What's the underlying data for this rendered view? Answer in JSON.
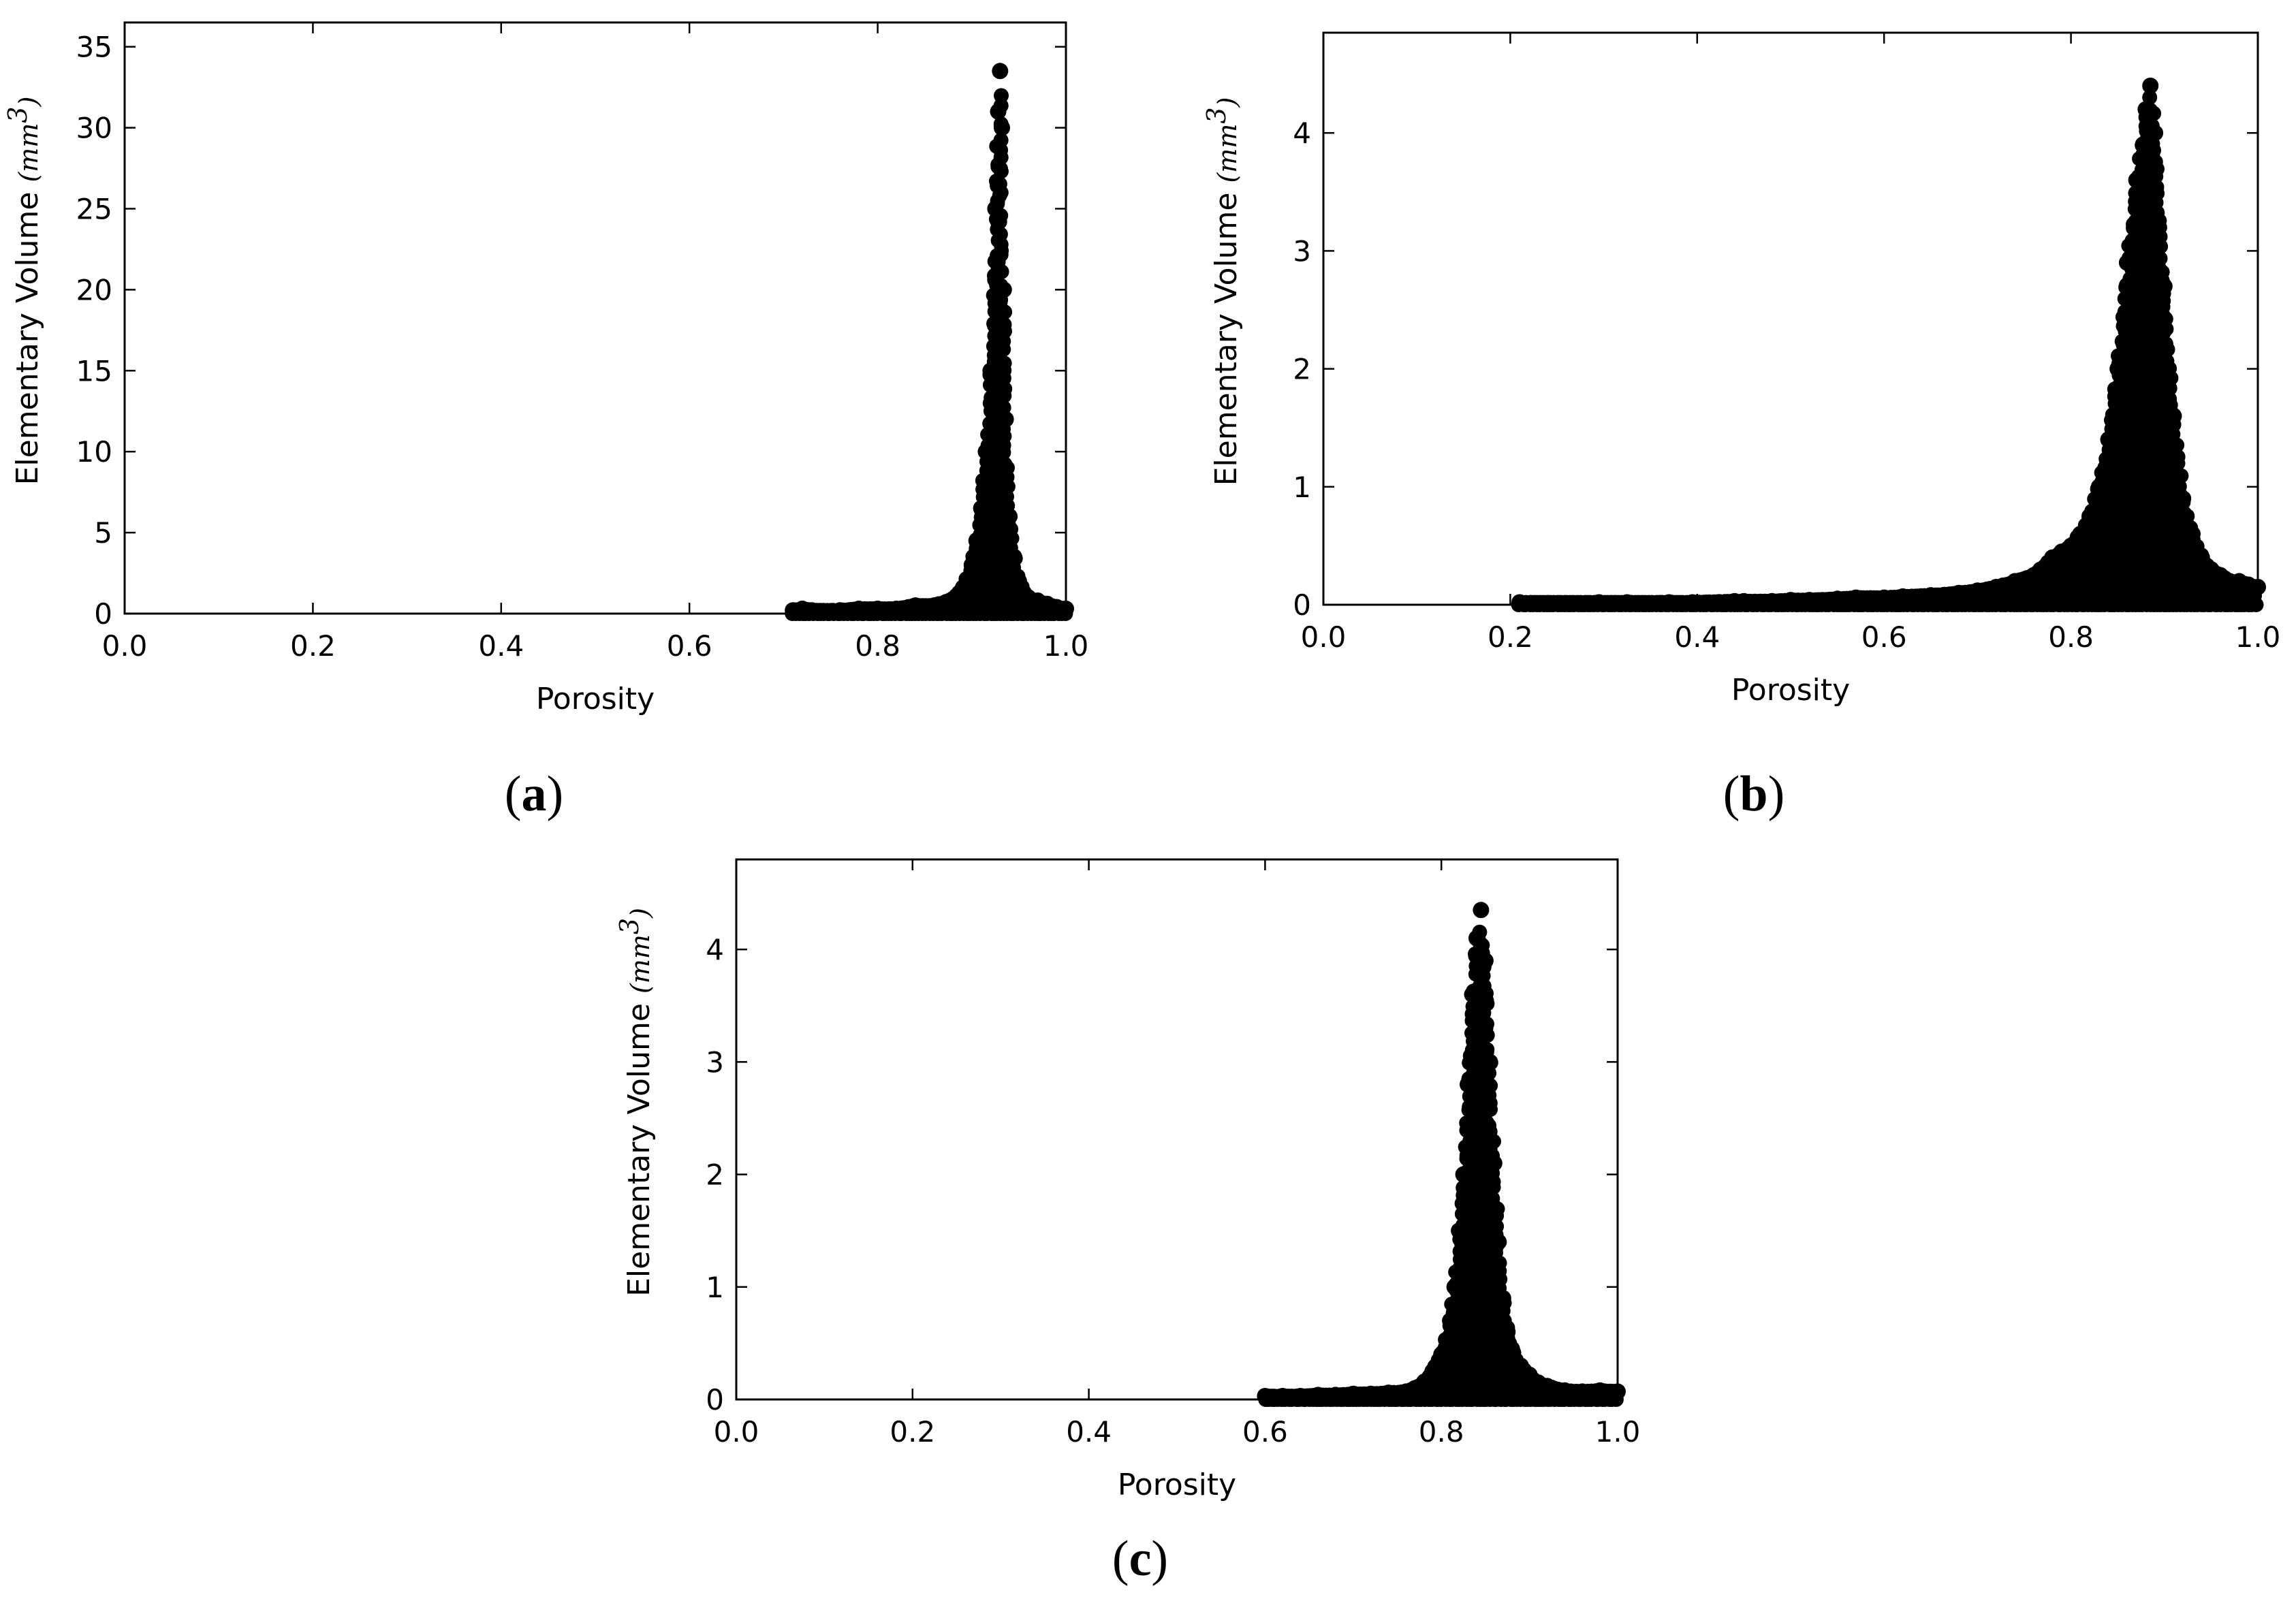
{
  "chart_data": [
    {
      "type": "scatter",
      "panel_label": "a",
      "xlabel": "Porosity",
      "ylabel": "Elementary Volume",
      "ylabel_unit": "(mm",
      "ylabel_unit_exp": "3",
      "ylabel_unit_close": ")",
      "xlim": [
        0.0,
        1.0
      ],
      "ylim": [
        0,
        36.5
      ],
      "xticks": [
        "0.0",
        "0.2",
        "0.4",
        "0.6",
        "0.8",
        "1.0"
      ],
      "yticks": [
        "0",
        "5",
        "10",
        "15",
        "20",
        "25",
        "30",
        "35"
      ],
      "x": [
        0.71,
        0.72,
        0.73,
        0.76,
        0.78,
        0.8,
        0.82,
        0.84,
        0.86,
        0.88,
        0.89,
        0.9,
        0.905,
        0.91,
        0.915,
        0.92,
        0.925,
        0.928,
        0.93,
        0.932,
        0.934,
        0.936,
        0.94,
        0.945,
        0.95,
        0.955,
        0.96,
        0.97,
        0.98,
        0.99,
        1.0
      ],
      "y": [
        0.2,
        0.3,
        0.2,
        0.2,
        0.3,
        0.3,
        0.3,
        0.5,
        0.5,
        0.9,
        1.5,
        3.0,
        4.5,
        6.5,
        10.0,
        15.0,
        25.0,
        31.0,
        33.5,
        30.0,
        20.0,
        12.0,
        6.0,
        3.5,
        2.0,
        1.3,
        1.0,
        0.8,
        0.6,
        0.4,
        0.3
      ]
    },
    {
      "type": "scatter",
      "panel_label": "b",
      "xlabel": "Porosity",
      "ylabel": "Elementary Volume",
      "ylabel_unit": "(mm",
      "ylabel_unit_exp": "3",
      "ylabel_unit_close": ")",
      "xlim": [
        0.0,
        1.0
      ],
      "ylim": [
        0,
        4.85
      ],
      "xticks": [
        "0.0",
        "0.2",
        "0.4",
        "0.6",
        "0.8",
        "1.0"
      ],
      "yticks": [
        "0",
        "1",
        "2",
        "3",
        "4"
      ],
      "x": [
        0.21,
        0.295,
        0.325,
        0.37,
        0.395,
        0.44,
        0.45,
        0.48,
        0.5,
        0.52,
        0.55,
        0.57,
        0.6,
        0.62,
        0.65,
        0.68,
        0.7,
        0.72,
        0.74,
        0.76,
        0.78,
        0.79,
        0.8,
        0.81,
        0.82,
        0.83,
        0.84,
        0.85,
        0.86,
        0.87,
        0.88,
        0.885,
        0.89,
        0.9,
        0.91,
        0.92,
        0.93,
        0.94,
        0.95,
        0.96,
        0.97,
        0.98,
        0.99,
        1.0
      ],
      "y": [
        0.02,
        0.02,
        0.02,
        0.02,
        0.02,
        0.03,
        0.03,
        0.03,
        0.04,
        0.04,
        0.05,
        0.06,
        0.06,
        0.07,
        0.08,
        0.1,
        0.12,
        0.15,
        0.2,
        0.25,
        0.4,
        0.45,
        0.5,
        0.6,
        0.75,
        1.0,
        1.4,
        2.0,
        2.9,
        3.6,
        4.2,
        4.4,
        4.0,
        2.7,
        1.6,
        0.9,
        0.6,
        0.4,
        0.3,
        0.25,
        0.2,
        0.2,
        0.17,
        0.15
      ]
    },
    {
      "type": "scatter",
      "panel_label": "c",
      "xlabel": "Porosity",
      "ylabel": "Elementary Volume",
      "ylabel_unit": "(mm",
      "ylabel_unit_exp": "3",
      "ylabel_unit_close": ")",
      "xlim": [
        0.0,
        1.0
      ],
      "ylim": [
        0,
        4.8
      ],
      "xticks": [
        "0.0",
        "0.2",
        "0.4",
        "0.6",
        "0.8",
        "1.0"
      ],
      "yticks": [
        "0",
        "1",
        "2",
        "3",
        "4"
      ],
      "x": [
        0.6,
        0.62,
        0.64,
        0.66,
        0.68,
        0.7,
        0.72,
        0.74,
        0.76,
        0.77,
        0.78,
        0.79,
        0.8,
        0.81,
        0.815,
        0.82,
        0.825,
        0.83,
        0.835,
        0.84,
        0.845,
        0.85,
        0.855,
        0.86,
        0.865,
        0.87,
        0.875,
        0.88,
        0.89,
        0.9,
        0.91,
        0.92,
        0.94,
        0.96,
        0.98,
        1.0
      ],
      "y": [
        0.03,
        0.03,
        0.03,
        0.04,
        0.04,
        0.05,
        0.05,
        0.06,
        0.07,
        0.1,
        0.15,
        0.25,
        0.4,
        0.7,
        1.0,
        1.5,
        2.0,
        2.8,
        3.6,
        4.1,
        4.35,
        3.9,
        3.0,
        2.1,
        1.4,
        0.9,
        0.6,
        0.45,
        0.3,
        0.22,
        0.15,
        0.12,
        0.08,
        0.07,
        0.08,
        0.07
      ]
    }
  ]
}
